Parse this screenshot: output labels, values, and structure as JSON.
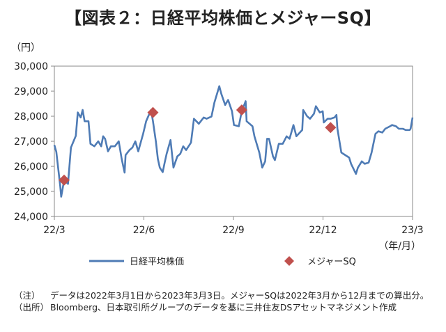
{
  "title": "【図表２：日経平均株価とメジャーSQ】",
  "chart_data": {
    "type": "line",
    "y_unit": "（円）",
    "x_unit": "（年/月）",
    "ylim": [
      24000,
      30000
    ],
    "y_ticks": [
      "24,000",
      "25,000",
      "26,000",
      "27,000",
      "28,000",
      "29,000",
      "30,000"
    ],
    "x_ticks": [
      "22/3",
      "22/6",
      "22/9",
      "22/12",
      "23/3"
    ],
    "xlim": [
      "2022-03-01",
      "2023-03-03"
    ],
    "grid": false,
    "legend_position": "bottom",
    "series": [
      {
        "name": "日経平均株価",
        "type": "line",
        "color": "#4E7BB5",
        "points": [
          [
            "2022-03-01",
            26850
          ],
          [
            "2022-03-03",
            26580
          ],
          [
            "2022-03-07",
            25220
          ],
          [
            "2022-03-08",
            24790
          ],
          [
            "2022-03-09",
            25000
          ],
          [
            "2022-03-11",
            25450
          ],
          [
            "2022-03-15",
            25300
          ],
          [
            "2022-03-16",
            25790
          ],
          [
            "2022-03-18",
            26750
          ],
          [
            "2022-03-23",
            27220
          ],
          [
            "2022-03-25",
            28150
          ],
          [
            "2022-03-28",
            27950
          ],
          [
            "2022-03-30",
            28250
          ],
          [
            "2022-04-01",
            27800
          ],
          [
            "2022-04-05",
            27800
          ],
          [
            "2022-04-07",
            26900
          ],
          [
            "2022-04-11",
            26800
          ],
          [
            "2022-04-13",
            26900
          ],
          [
            "2022-04-15",
            27000
          ],
          [
            "2022-04-18",
            26800
          ],
          [
            "2022-04-20",
            27200
          ],
          [
            "2022-04-22",
            27100
          ],
          [
            "2022-04-25",
            26600
          ],
          [
            "2022-04-28",
            26800
          ],
          [
            "2022-05-02",
            26800
          ],
          [
            "2022-05-06",
            27000
          ],
          [
            "2022-05-09",
            26300
          ],
          [
            "2022-05-12",
            25750
          ],
          [
            "2022-05-13",
            26450
          ],
          [
            "2022-05-17",
            26650
          ],
          [
            "2022-05-20",
            26750
          ],
          [
            "2022-05-23",
            27000
          ],
          [
            "2022-05-26",
            26600
          ],
          [
            "2022-05-31",
            27300
          ],
          [
            "2022-06-03",
            27800
          ],
          [
            "2022-06-08",
            28250
          ],
          [
            "2022-06-10",
            27800
          ],
          [
            "2022-06-13",
            26990
          ],
          [
            "2022-06-15",
            26300
          ],
          [
            "2022-06-17",
            25950
          ],
          [
            "2022-06-20",
            25770
          ],
          [
            "2022-06-22",
            26150
          ],
          [
            "2022-06-24",
            26500
          ],
          [
            "2022-06-28",
            27050
          ],
          [
            "2022-07-01",
            25950
          ],
          [
            "2022-07-05",
            26400
          ],
          [
            "2022-07-08",
            26500
          ],
          [
            "2022-07-11",
            26800
          ],
          [
            "2022-07-14",
            26650
          ],
          [
            "2022-07-19",
            26950
          ],
          [
            "2022-07-22",
            27900
          ],
          [
            "2022-07-27",
            27700
          ],
          [
            "2022-08-01",
            27950
          ],
          [
            "2022-08-04",
            27900
          ],
          [
            "2022-08-09",
            27990
          ],
          [
            "2022-08-12",
            28550
          ],
          [
            "2022-08-17",
            29200
          ],
          [
            "2022-08-19",
            28900
          ],
          [
            "2022-08-23",
            28450
          ],
          [
            "2022-08-26",
            28650
          ],
          [
            "2022-08-30",
            28200
          ],
          [
            "2022-09-01",
            27650
          ],
          [
            "2022-09-06",
            27600
          ],
          [
            "2022-09-09",
            28200
          ],
          [
            "2022-09-13",
            28600
          ],
          [
            "2022-09-14",
            27800
          ],
          [
            "2022-09-20",
            27600
          ],
          [
            "2022-09-22",
            27200
          ],
          [
            "2022-09-27",
            26550
          ],
          [
            "2022-09-30",
            25950
          ],
          [
            "2022-10-03",
            26200
          ],
          [
            "2022-10-05",
            27100
          ],
          [
            "2022-10-07",
            27100
          ],
          [
            "2022-10-11",
            26400
          ],
          [
            "2022-10-13",
            26250
          ],
          [
            "2022-10-17",
            26900
          ],
          [
            "2022-10-21",
            26900
          ],
          [
            "2022-10-25",
            27200
          ],
          [
            "2022-10-28",
            27100
          ],
          [
            "2022-11-01",
            27650
          ],
          [
            "2022-11-04",
            27200
          ],
          [
            "2022-11-10",
            27450
          ],
          [
            "2022-11-11",
            28250
          ],
          [
            "2022-11-15",
            28000
          ],
          [
            "2022-11-18",
            27900
          ],
          [
            "2022-11-22",
            28100
          ],
          [
            "2022-11-24",
            28400
          ],
          [
            "2022-11-28",
            28150
          ],
          [
            "2022-12-01",
            28200
          ],
          [
            "2022-12-02",
            27750
          ],
          [
            "2022-12-06",
            27900
          ],
          [
            "2022-12-09",
            27900
          ],
          [
            "2022-12-13",
            27950
          ],
          [
            "2022-12-15",
            28050
          ],
          [
            "2022-12-16",
            27500
          ],
          [
            "2022-12-20",
            26550
          ],
          [
            "2022-12-22",
            26500
          ],
          [
            "2022-12-26",
            26400
          ],
          [
            "2022-12-28",
            26350
          ],
          [
            "2022-12-30",
            26100
          ],
          [
            "2023-01-04",
            25700
          ],
          [
            "2023-01-06",
            25950
          ],
          [
            "2023-01-10",
            26200
          ],
          [
            "2023-01-13",
            26100
          ],
          [
            "2023-01-17",
            26150
          ],
          [
            "2023-01-20",
            26550
          ],
          [
            "2023-01-24",
            27300
          ],
          [
            "2023-01-27",
            27400
          ],
          [
            "2023-01-31",
            27350
          ],
          [
            "2023-02-03",
            27500
          ],
          [
            "2023-02-08",
            27600
          ],
          [
            "2023-02-10",
            27650
          ],
          [
            "2023-02-14",
            27600
          ],
          [
            "2023-02-17",
            27500
          ],
          [
            "2023-02-21",
            27500
          ],
          [
            "2023-02-24",
            27450
          ],
          [
            "2023-02-28",
            27450
          ],
          [
            "2023-03-01",
            27500
          ],
          [
            "2023-03-03",
            27950
          ]
        ]
      },
      {
        "name": "メジャーSQ",
        "type": "scatter",
        "marker": "diamond",
        "color": "#C0504D",
        "points": [
          [
            "2022-03-11",
            25450
          ],
          [
            "2022-06-10",
            28150
          ],
          [
            "2022-09-09",
            28250
          ],
          [
            "2022-12-09",
            27550
          ]
        ]
      }
    ]
  },
  "notes": [
    {
      "tag": "（注）",
      "text": "データは2022年3月1日から2023年3月3日。メジャーSQは2022年3月から12月までの算出分。"
    },
    {
      "tag": "（出所）",
      "text": "Bloomberg、日本取引所グループのデータを基に三井住友DSアセットマネジメント作成"
    }
  ]
}
